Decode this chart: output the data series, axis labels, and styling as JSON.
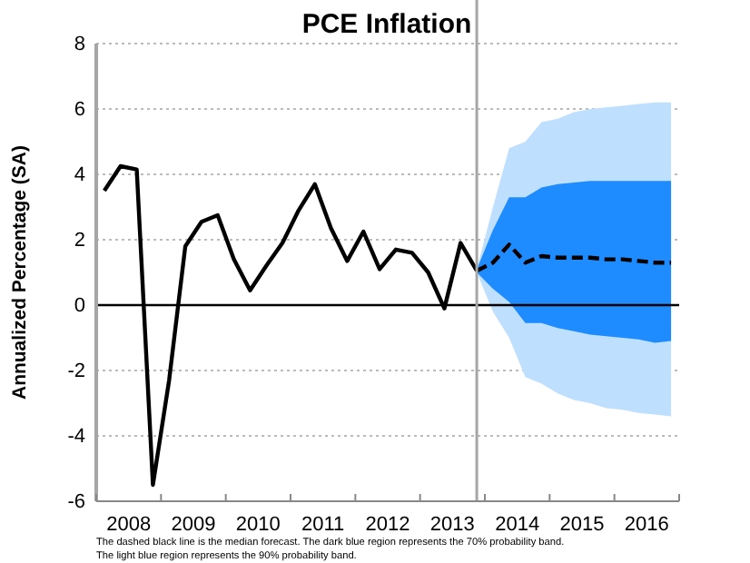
{
  "chart_data": {
    "type": "line",
    "title": "PCE Inflation",
    "ylabel": "Annualized Percentage (SA)",
    "xlim": [
      2008,
      2017
    ],
    "ylim": [
      -6,
      8
    ],
    "yticks": [
      -6,
      -4,
      -2,
      0,
      2,
      4,
      6,
      8
    ],
    "xticks": [
      {
        "value": 2008,
        "label": null
      },
      {
        "value": 2008.5,
        "label": "2008"
      },
      {
        "value": 2009,
        "label": null
      },
      {
        "value": 2009.5,
        "label": "2009"
      },
      {
        "value": 2010,
        "label": null
      },
      {
        "value": 2010.5,
        "label": "2010"
      },
      {
        "value": 2011,
        "label": null
      },
      {
        "value": 2011.5,
        "label": "2011"
      },
      {
        "value": 2012,
        "label": null
      },
      {
        "value": 2012.5,
        "label": "2012"
      },
      {
        "value": 2013,
        "label": null
      },
      {
        "value": 2013.5,
        "label": "2013"
      },
      {
        "value": 2014,
        "label": null
      },
      {
        "value": 2014.5,
        "label": "2014"
      },
      {
        "value": 2015,
        "label": null
      },
      {
        "value": 2015.5,
        "label": "2015"
      },
      {
        "value": 2016,
        "label": null
      },
      {
        "value": 2016.5,
        "label": "2016"
      },
      {
        "value": 2017,
        "label": null
      }
    ],
    "grid": "y",
    "series": [
      {
        "color": "#bfdfff",
        "x": [
          2013.875,
          2014.125,
          2014.375,
          2014.625,
          2014.875,
          2015.125,
          2015.375,
          2015.625,
          2015.875,
          2016.125,
          2016.375,
          2016.625,
          2016.875
        ],
        "values": [
          null,
          null,
          null,
          null,
          null,
          null,
          null,
          null,
          null,
          null,
          null,
          null,
          null
        ],
        "lower": [
          1.0,
          -0.2,
          -1.0,
          -2.2,
          -2.4,
          -2.7,
          -2.9,
          -3.0,
          -3.15,
          -3.2,
          -3.3,
          -3.35,
          -3.4
        ],
        "upper": [
          1.1,
          3.0,
          4.8,
          5.0,
          5.6,
          5.7,
          5.9,
          6.0,
          6.05,
          6.1,
          6.15,
          6.2,
          6.2
        ]
      },
      {
        "color": "#1e8cff",
        "x": [
          2013.875,
          2014.125,
          2014.375,
          2014.625,
          2014.875,
          2015.125,
          2015.375,
          2015.625,
          2015.875,
          2016.125,
          2016.375,
          2016.625,
          2016.875
        ],
        "values": [
          null,
          null,
          null,
          null,
          null,
          null,
          null,
          null,
          null,
          null,
          null,
          null,
          null
        ],
        "lower": [
          1.0,
          0.5,
          0.1,
          -0.55,
          -0.55,
          -0.7,
          -0.8,
          -0.9,
          -0.95,
          -1.0,
          -1.05,
          -1.15,
          -1.1
        ],
        "upper": [
          1.1,
          2.3,
          3.3,
          3.3,
          3.6,
          3.7,
          3.75,
          3.8,
          3.8,
          3.8,
          3.8,
          3.8,
          3.8
        ]
      },
      {
        "color": "#000000",
        "line_style": "solid",
        "x": [
          2008.125,
          2008.375,
          2008.625,
          2008.875,
          2009.125,
          2009.375,
          2009.625,
          2009.875,
          2010.125,
          2010.375,
          2010.625,
          2010.875,
          2011.125,
          2011.375,
          2011.625,
          2011.875,
          2012.125,
          2012.375,
          2012.625,
          2012.875,
          2013.125,
          2013.375,
          2013.625,
          2013.875
        ],
        "values": [
          3.5,
          4.25,
          4.15,
          -5.5,
          -2.3,
          1.8,
          2.55,
          2.75,
          1.4,
          0.45,
          1.2,
          1.9,
          2.9,
          3.7,
          2.35,
          1.35,
          2.25,
          1.1,
          1.7,
          1.6,
          1.0,
          -0.1,
          1.9,
          1.05
        ]
      },
      {
        "color": "#000000",
        "line_style": "dashed",
        "x": [
          2013.875,
          2014.125,
          2014.375,
          2014.625,
          2014.875,
          2015.125,
          2015.375,
          2015.625,
          2015.875,
          2016.125,
          2016.375,
          2016.625,
          2016.875
        ],
        "values": [
          1.05,
          1.3,
          1.85,
          1.3,
          1.5,
          1.45,
          1.45,
          1.45,
          1.4,
          1.4,
          1.35,
          1.3,
          1.3
        ]
      }
    ],
    "ref_lines": [
      {
        "axis": "y",
        "value": 0,
        "color": "#000000"
      },
      {
        "axis": "x",
        "value": 2013.875,
        "color": "#a6a6a6"
      }
    ],
    "annotations": [
      "The dashed black line is the median forecast. The dark blue region represents the 70% probability band.",
      "The light blue region represents the 90% probability band."
    ]
  }
}
